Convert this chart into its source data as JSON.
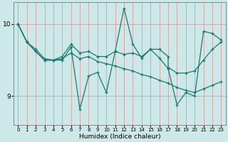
{
  "title": "",
  "xlabel": "Humidex (Indice chaleur)",
  "background_color": "#cce8e8",
  "grid_color": "#d4a0a0",
  "line_color": "#1a7a6e",
  "xlim": [
    -0.5,
    23.5
  ],
  "ylim": [
    8.6,
    10.3
  ],
  "yticks": [
    9,
    10
  ],
  "xticks": [
    0,
    1,
    2,
    3,
    4,
    5,
    6,
    7,
    8,
    9,
    10,
    11,
    12,
    13,
    14,
    15,
    16,
    17,
    18,
    19,
    20,
    21,
    22,
    23
  ],
  "series1_x": [
    0,
    1,
    2,
    3,
    4,
    5,
    6,
    7,
    8,
    9,
    10,
    11,
    12,
    13,
    14,
    15,
    16,
    17,
    18,
    19,
    20,
    21,
    22,
    23
  ],
  "series1_y": [
    10.0,
    9.75,
    9.62,
    9.5,
    9.5,
    9.5,
    9.68,
    8.82,
    9.28,
    9.33,
    9.05,
    9.62,
    10.22,
    9.72,
    9.53,
    9.65,
    9.53,
    9.38,
    8.88,
    9.05,
    9.0,
    9.9,
    9.87,
    9.78
  ],
  "series2_x": [
    0,
    1,
    2,
    3,
    4,
    5,
    6,
    7,
    8,
    9,
    10,
    11,
    12,
    13,
    14,
    15,
    16,
    17,
    18,
    19,
    20,
    21,
    22,
    23
  ],
  "series2_y": [
    10.0,
    9.75,
    9.65,
    9.52,
    9.5,
    9.52,
    9.6,
    9.52,
    9.55,
    9.48,
    9.45,
    9.42,
    9.38,
    9.35,
    9.3,
    9.27,
    9.22,
    9.18,
    9.12,
    9.08,
    9.05,
    9.1,
    9.15,
    9.2
  ],
  "series3_x": [
    0,
    1,
    2,
    3,
    4,
    5,
    6,
    7,
    8,
    9,
    10,
    11,
    12,
    13,
    14,
    15,
    16,
    17,
    17,
    18,
    19,
    20,
    21,
    22,
    23
  ],
  "series3_y": [
    10.0,
    9.75,
    9.62,
    9.5,
    9.5,
    9.55,
    9.72,
    9.6,
    9.62,
    9.55,
    9.55,
    9.62,
    9.58,
    9.6,
    9.55,
    9.65,
    9.65,
    9.55,
    9.4,
    9.32,
    9.32,
    9.35,
    9.5,
    9.65,
    9.75
  ]
}
